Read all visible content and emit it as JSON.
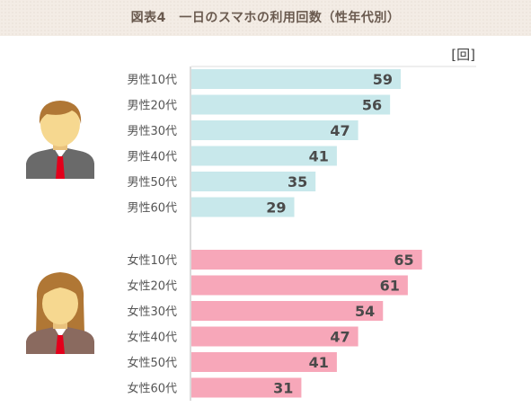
{
  "chart_data": {
    "type": "bar",
    "orientation": "horizontal",
    "title": "図表4　一日のスマホの利用回数（性年代別）",
    "unit": "[回]",
    "groups": [
      {
        "icon": "male-person-icon",
        "color": "#c8e8eb",
        "categories": [
          "男性10代",
          "男性20代",
          "男性30代",
          "男性40代",
          "男性50代",
          "男性60代"
        ],
        "values": [
          59,
          56,
          47,
          41,
          35,
          29
        ]
      },
      {
        "icon": "female-person-icon",
        "color": "#f7a7b9",
        "categories": [
          "女性10代",
          "女性20代",
          "女性30代",
          "女性40代",
          "女性50代",
          "女性60代"
        ],
        "values": [
          65,
          61,
          54,
          47,
          41,
          31
        ]
      }
    ],
    "xlim": [
      0,
      80
    ],
    "grid": false,
    "legend": "none"
  }
}
